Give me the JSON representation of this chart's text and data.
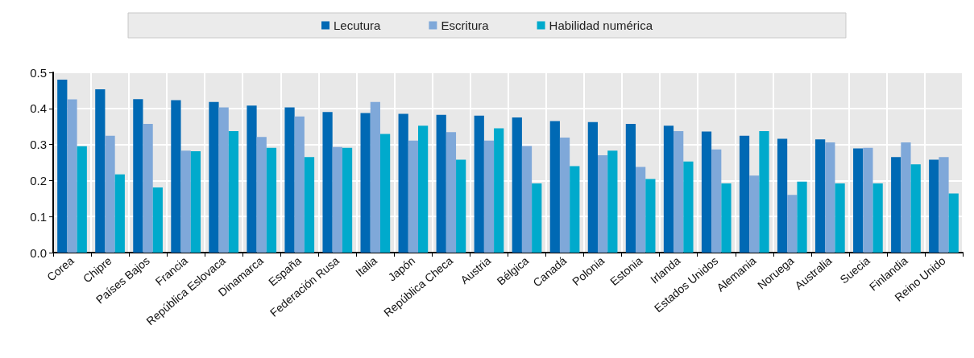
{
  "chart_data": {
    "type": "bar",
    "categories": [
      "Corea",
      "Chipre",
      "Países Bajos",
      "Francia",
      "República Eslovaca",
      "Dinamarca",
      "España",
      "Federación Rusa",
      "Italia",
      "Japón",
      "República Checa",
      "Austria",
      "Bélgica",
      "Canadá",
      "Polonia",
      "Estonia",
      "Irlanda",
      "Estados Unidos",
      "Alemania",
      "Noruega",
      "Australia",
      "Suecia",
      "Finlandia",
      "Reino Unido"
    ],
    "series": [
      {
        "name": "Lecutura",
        "color": "#0069b4",
        "values": [
          0.48,
          0.453,
          0.426,
          0.423,
          0.418,
          0.408,
          0.403,
          0.39,
          0.387,
          0.385,
          0.382,
          0.38,
          0.375,
          0.365,
          0.362,
          0.357,
          0.352,
          0.336,
          0.324,
          0.316,
          0.314,
          0.289,
          0.265,
          0.258
        ]
      },
      {
        "name": "Escritura",
        "color": "#7fa8d9",
        "values": [
          0.425,
          0.324,
          0.357,
          0.283,
          0.403,
          0.321,
          0.378,
          0.293,
          0.418,
          0.311,
          0.334,
          0.311,
          0.296,
          0.319,
          0.27,
          0.238,
          0.337,
          0.286,
          0.214,
          0.16,
          0.306,
          0.291,
          0.306,
          0.265
        ]
      },
      {
        "name": "Habilidad numérica",
        "color": "#00aacc",
        "values": [
          0.295,
          0.217,
          0.181,
          0.281,
          0.337,
          0.291,
          0.265,
          0.291,
          0.329,
          0.352,
          0.258,
          0.345,
          0.192,
          0.24,
          0.283,
          0.204,
          0.253,
          0.192,
          0.337,
          0.197,
          0.192,
          0.192,
          0.245,
          0.164
        ]
      }
    ],
    "ylim": [
      0,
      0.5
    ],
    "yticks": [
      {
        "value": 0,
        "label": "0.0"
      },
      0.1,
      0.2,
      0.3,
      0.4,
      0.5
    ],
    "grid": true,
    "legend": "top"
  }
}
